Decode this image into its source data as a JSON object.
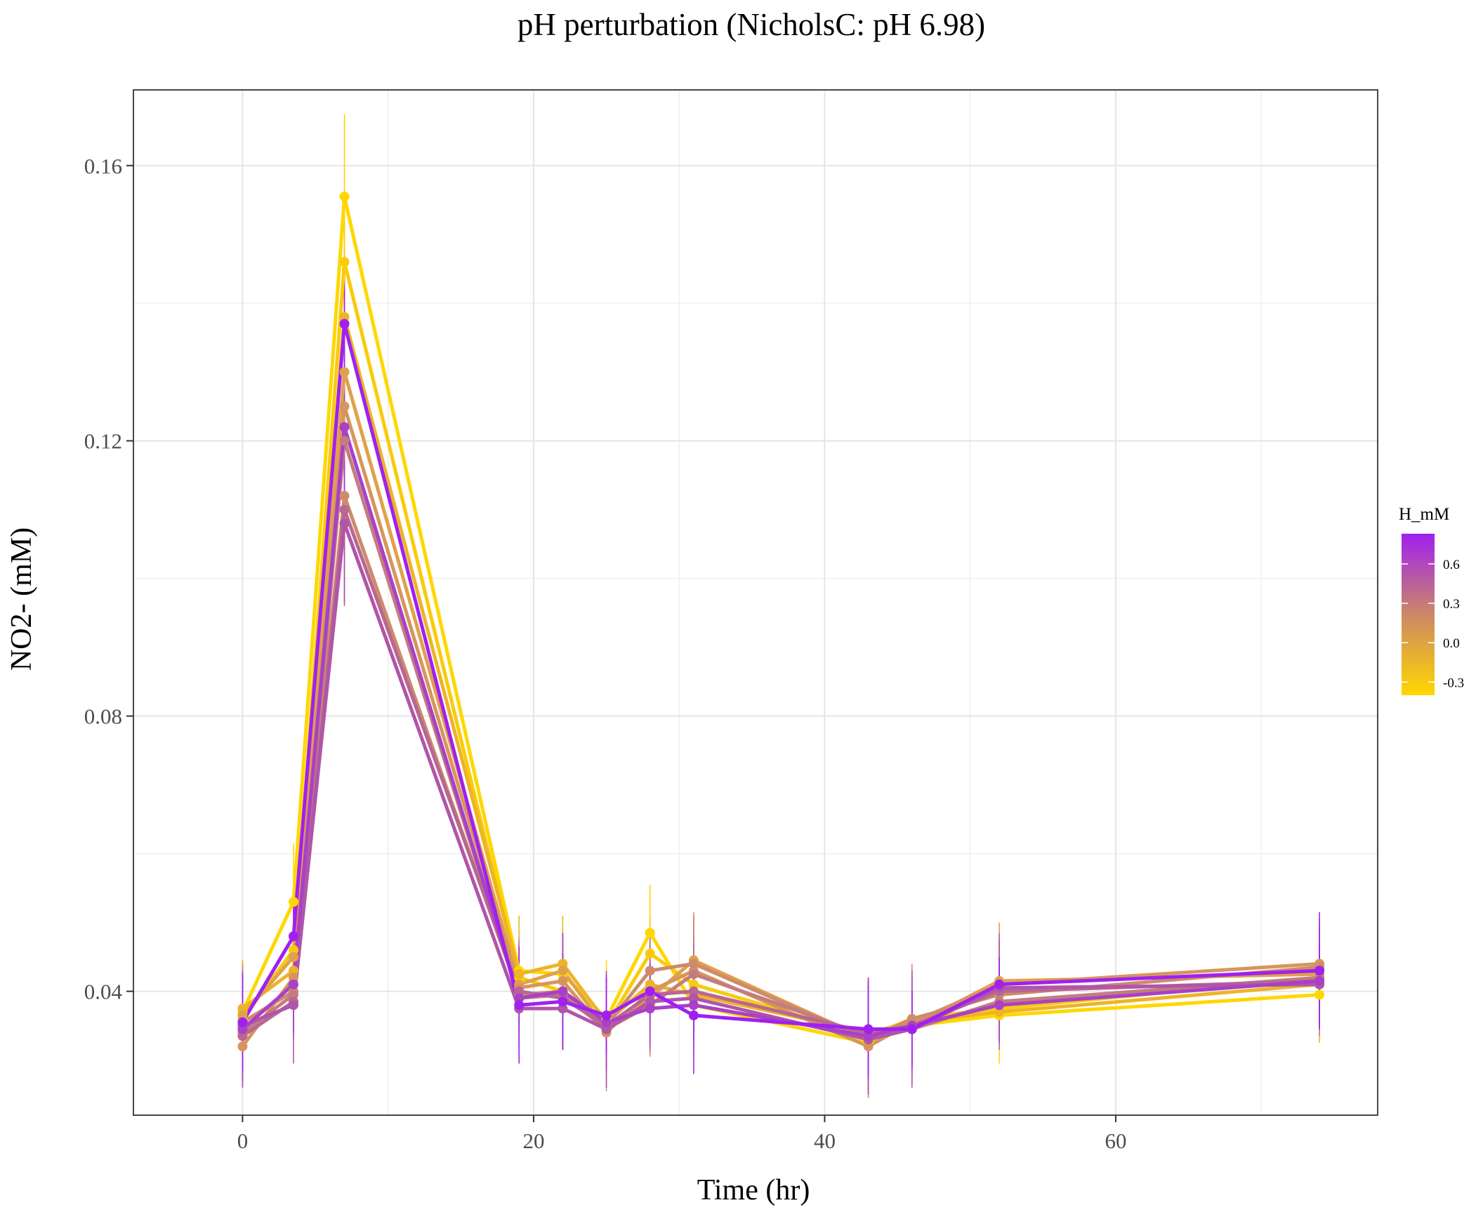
{
  "chart_data": {
    "type": "line",
    "title": "pH perturbation (NicholsC: pH 6.98)",
    "xlabel": "Time (hr)",
    "ylabel": "NO2- (mM)",
    "xlim": [
      -7.5,
      78
    ],
    "ylim": [
      0.022,
      0.171
    ],
    "x_ticks": [
      0,
      20,
      40,
      60
    ],
    "x_tick_labels": [
      "0",
      "20",
      "40",
      "60"
    ],
    "y_ticks": [
      0.04,
      0.08,
      0.12,
      0.16
    ],
    "y_tick_labels": [
      "0.04",
      "0.08",
      "0.12",
      "0.16"
    ],
    "grid": true,
    "legend": {
      "title": "H_mM",
      "type": "colorbar",
      "placement": "right",
      "range": [
        -0.4,
        0.83
      ],
      "tick_values": [
        -0.3,
        0.0,
        0.3,
        0.6
      ],
      "tick_labels": [
        "-0.3",
        "0.0",
        "0.3",
        "0.6"
      ],
      "color_low": "#FFD700",
      "color_mid": "#CC8866",
      "color_high": "#A020F0"
    },
    "x": [
      0,
      3.5,
      7,
      19,
      22,
      25,
      28,
      31,
      43,
      46,
      52,
      74
    ],
    "series": [
      {
        "h": -0.38,
        "color": "#FFD700",
        "values": [
          0.037,
          0.053,
          0.1555,
          0.043,
          0.0425,
          0.036,
          0.0485,
          0.038,
          0.0325,
          0.035,
          0.0365,
          0.0395
        ]
      },
      {
        "h": -0.3,
        "color": "#F9CB0A",
        "values": [
          0.036,
          0.046,
          0.146,
          0.042,
          0.04,
          0.035,
          0.0455,
          0.041,
          0.0335,
          0.036,
          0.0375,
          0.042
        ]
      },
      {
        "h": -0.15,
        "color": "#EDB428",
        "values": [
          0.0375,
          0.043,
          0.138,
          0.0425,
          0.044,
          0.0355,
          0.041,
          0.0395,
          0.034,
          0.0355,
          0.037,
          0.041
        ]
      },
      {
        "h": 0.0,
        "color": "#E0A14B",
        "values": [
          0.0365,
          0.045,
          0.13,
          0.041,
          0.043,
          0.0345,
          0.039,
          0.0445,
          0.033,
          0.035,
          0.0415,
          0.0425
        ]
      },
      {
        "h": 0.12,
        "color": "#D7955D",
        "values": [
          0.032,
          0.042,
          0.125,
          0.0405,
          0.0415,
          0.034,
          0.04,
          0.043,
          0.032,
          0.0355,
          0.041,
          0.044
        ]
      },
      {
        "h": 0.22,
        "color": "#CE8A6C",
        "values": [
          0.0355,
          0.04,
          0.112,
          0.0395,
          0.04,
          0.035,
          0.043,
          0.044,
          0.033,
          0.036,
          0.0395,
          0.0435
        ]
      },
      {
        "h": 0.32,
        "color": "#C47C7E",
        "values": [
          0.034,
          0.0395,
          0.12,
          0.039,
          0.0395,
          0.0345,
          0.038,
          0.0425,
          0.0335,
          0.0345,
          0.0385,
          0.042
        ]
      },
      {
        "h": 0.45,
        "color": "#B86792",
        "values": [
          0.0335,
          0.0385,
          0.11,
          0.04,
          0.039,
          0.035,
          0.0395,
          0.04,
          0.034,
          0.035,
          0.04,
          0.0415
        ]
      },
      {
        "h": 0.55,
        "color": "#B055A9",
        "values": [
          0.035,
          0.038,
          0.108,
          0.0375,
          0.0375,
          0.0345,
          0.0385,
          0.039,
          0.033,
          0.0345,
          0.0405,
          0.041
        ]
      },
      {
        "h": 0.68,
        "color": "#A840C8",
        "values": [
          0.0345,
          0.041,
          0.122,
          0.039,
          0.04,
          0.0355,
          0.0375,
          0.038,
          0.0335,
          0.035,
          0.038,
          0.0415
        ]
      },
      {
        "h": 0.8,
        "color": "#A020F0",
        "values": [
          0.0355,
          0.048,
          0.137,
          0.038,
          0.0385,
          0.0365,
          0.04,
          0.0365,
          0.0345,
          0.0345,
          0.041,
          0.043
        ]
      }
    ]
  }
}
